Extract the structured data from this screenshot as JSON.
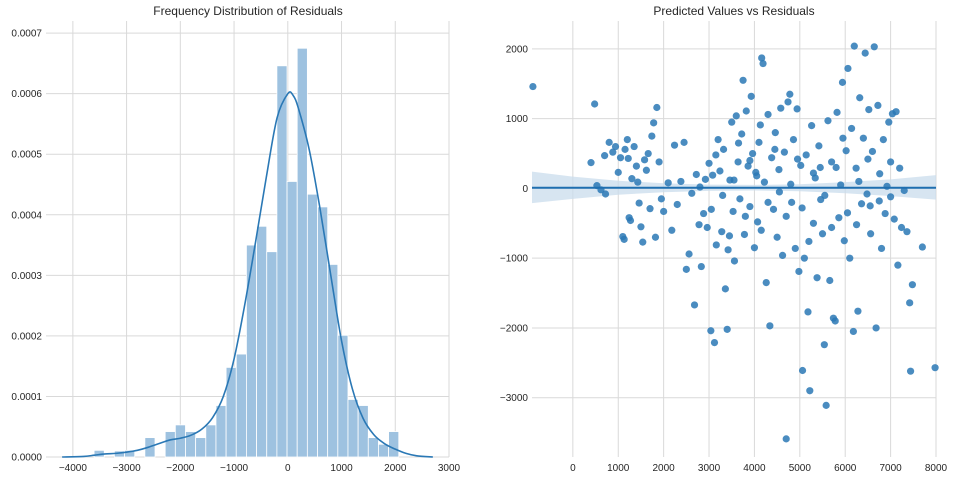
{
  "chart_data": [
    {
      "type": "histogram",
      "title": "Frequency Distribution of Residuals",
      "xlabel": "",
      "ylabel": "",
      "xlim": [
        -4500,
        3000
      ],
      "ylim": [
        0,
        0.00072
      ],
      "grid": true,
      "xticks": [
        -4000,
        -3000,
        -2000,
        -1000,
        0,
        1000,
        2000,
        3000
      ],
      "yticks": [
        0.0,
        0.0001,
        0.0002,
        0.0003,
        0.0004,
        0.0005,
        0.0006,
        0.0007
      ],
      "ytick_labels": [
        "0.0000",
        "0.0001",
        "0.0002",
        "0.0003",
        "0.0004",
        "0.0005",
        "0.0006",
        "0.0007"
      ],
      "bin_width": 189,
      "bins": [
        {
          "x0": -3605,
          "x1": -3416,
          "density": 1.1e-05
        },
        {
          "x0": -3416,
          "x1": -3227,
          "density": 0.0
        },
        {
          "x0": -3227,
          "x1": -3038,
          "density": 1e-05
        },
        {
          "x0": -3038,
          "x1": -2849,
          "density": 1.1e-05
        },
        {
          "x0": -2849,
          "x1": -2660,
          "density": 0.0
        },
        {
          "x0": -2660,
          "x1": -2471,
          "density": 3.2e-05
        },
        {
          "x0": -2471,
          "x1": -2282,
          "density": 0.0
        },
        {
          "x0": -2282,
          "x1": -2093,
          "density": 4.2e-05
        },
        {
          "x0": -2093,
          "x1": -1904,
          "density": 5.3e-05
        },
        {
          "x0": -1904,
          "x1": -1715,
          "density": 4.2e-05
        },
        {
          "x0": -1715,
          "x1": -1526,
          "density": 3.2e-05
        },
        {
          "x0": -1526,
          "x1": -1337,
          "density": 5.3e-05
        },
        {
          "x0": -1337,
          "x1": -1148,
          "density": 8.5e-05
        },
        {
          "x0": -1148,
          "x1": -959,
          "density": 0.000148
        },
        {
          "x0": -959,
          "x1": -770,
          "density": 0.00017
        },
        {
          "x0": -770,
          "x1": -581,
          "density": 0.00035
        },
        {
          "x0": -581,
          "x1": -392,
          "density": 0.000381
        },
        {
          "x0": -392,
          "x1": -203,
          "density": 0.000339
        },
        {
          "x0": -203,
          "x1": -14,
          "density": 0.000646
        },
        {
          "x0": -14,
          "x1": 175,
          "density": 0.000455
        },
        {
          "x0": 175,
          "x1": 364,
          "density": 0.000675
        },
        {
          "x0": 364,
          "x1": 553,
          "density": 0.000434
        },
        {
          "x0": 553,
          "x1": 742,
          "density": 0.000413
        },
        {
          "x0": 742,
          "x1": 931,
          "density": 0.000318
        },
        {
          "x0": 931,
          "x1": 1120,
          "density": 0.000201
        },
        {
          "x0": 1120,
          "x1": 1309,
          "density": 9.5e-05
        },
        {
          "x0": 1309,
          "x1": 1498,
          "density": 8.5e-05
        },
        {
          "x0": 1498,
          "x1": 1687,
          "density": 3.2e-05
        },
        {
          "x0": 1687,
          "x1": 1876,
          "density": 2.1e-05
        },
        {
          "x0": 1876,
          "x1": 2065,
          "density": 4.2e-05
        }
      ],
      "kde": {
        "x": [
          -4200,
          -3800,
          -3600,
          -3400,
          -3200,
          -3000,
          -2800,
          -2600,
          -2400,
          -2200,
          -2000,
          -1800,
          -1600,
          -1400,
          -1200,
          -1000,
          -800,
          -600,
          -400,
          -200,
          0,
          100,
          200,
          400,
          600,
          800,
          1000,
          1200,
          1400,
          1600,
          1800,
          2000,
          2200,
          2400,
          2700
        ],
        "y": [
          0.0,
          1e-06,
          3e-06,
          5e-06,
          6e-06,
          8e-06,
          1.1e-05,
          1.6e-05,
          2.2e-05,
          2.8e-05,
          3.1e-05,
          3.6e-05,
          4.6e-05,
          6.5e-05,
          0.0001,
          0.000162,
          0.000252,
          0.000355,
          0.000462,
          0.00056,
          0.0006,
          0.000597,
          0.000575,
          0.000507,
          0.00041,
          0.0003,
          0.000192,
          0.000113,
          6.4e-05,
          3.7e-05,
          2.2e-05,
          1.3e-05,
          6e-06,
          2e-06,
          0.0
        ]
      },
      "colors": {
        "bar": "#9ec2e0",
        "bar_edge": "#ffffff",
        "kde": "#2a78b5"
      }
    },
    {
      "type": "scatter",
      "title": "Predicted Values vs Residuals",
      "xlabel": "",
      "ylabel": "",
      "xlim": [
        -900,
        8000
      ],
      "ylim": [
        -3850,
        2400
      ],
      "grid": true,
      "xticks": [
        0,
        1000,
        2000,
        3000,
        4000,
        5000,
        6000,
        7000,
        8000
      ],
      "yticks": [
        -3000,
        -2000,
        -1000,
        0,
        1000,
        2000
      ],
      "regression": {
        "x": [
          -900,
          8000
        ],
        "y": [
          10,
          10
        ]
      },
      "confidence_band": {
        "x": [
          -900,
          0,
          1000,
          2000,
          3000,
          4000,
          5000,
          6000,
          7000,
          8000
        ],
        "lower": [
          -210,
          -150,
          -90,
          -55,
          -35,
          -30,
          -40,
          -70,
          -110,
          -160
        ],
        "upper": [
          240,
          170,
          110,
          75,
          55,
          50,
          60,
          90,
          130,
          190
        ]
      },
      "points": [
        {
          "x": -880,
          "y": 1460
        },
        {
          "x": 480,
          "y": 1210
        },
        {
          "x": 400,
          "y": 370
        },
        {
          "x": 530,
          "y": 40
        },
        {
          "x": 620,
          "y": -20
        },
        {
          "x": 700,
          "y": 470
        },
        {
          "x": 720,
          "y": -80
        },
        {
          "x": 800,
          "y": 660
        },
        {
          "x": 880,
          "y": 520
        },
        {
          "x": 940,
          "y": 600
        },
        {
          "x": 1000,
          "y": 230
        },
        {
          "x": 1050,
          "y": 440
        },
        {
          "x": 1100,
          "y": -690
        },
        {
          "x": 1130,
          "y": -730
        },
        {
          "x": 1150,
          "y": 560
        },
        {
          "x": 1200,
          "y": 700
        },
        {
          "x": 1220,
          "y": 430
        },
        {
          "x": 1240,
          "y": -420
        },
        {
          "x": 1270,
          "y": -460
        },
        {
          "x": 1300,
          "y": 140
        },
        {
          "x": 1350,
          "y": 600
        },
        {
          "x": 1400,
          "y": 320
        },
        {
          "x": 1430,
          "y": 90
        },
        {
          "x": 1460,
          "y": -210
        },
        {
          "x": 1500,
          "y": -550
        },
        {
          "x": 1540,
          "y": -770
        },
        {
          "x": 1580,
          "y": 410
        },
        {
          "x": 1620,
          "y": 260
        },
        {
          "x": 1660,
          "y": 500
        },
        {
          "x": 1700,
          "y": -290
        },
        {
          "x": 1740,
          "y": 750
        },
        {
          "x": 1780,
          "y": 940
        },
        {
          "x": 1820,
          "y": -700
        },
        {
          "x": 1850,
          "y": 1160
        },
        {
          "x": 1900,
          "y": 380
        },
        {
          "x": 1950,
          "y": -150
        },
        {
          "x": 2000,
          "y": -330
        },
        {
          "x": 2100,
          "y": 80
        },
        {
          "x": 2180,
          "y": -600
        },
        {
          "x": 2240,
          "y": 620
        },
        {
          "x": 2300,
          "y": -230
        },
        {
          "x": 2380,
          "y": 100
        },
        {
          "x": 2450,
          "y": 660
        },
        {
          "x": 2500,
          "y": -1160
        },
        {
          "x": 2560,
          "y": -940
        },
        {
          "x": 2620,
          "y": -70
        },
        {
          "x": 2680,
          "y": -1670
        },
        {
          "x": 2720,
          "y": 200
        },
        {
          "x": 2780,
          "y": -520
        },
        {
          "x": 2830,
          "y": -1120
        },
        {
          "x": 2880,
          "y": -360
        },
        {
          "x": 2920,
          "y": 130
        },
        {
          "x": 2960,
          "y": -560
        },
        {
          "x": 3000,
          "y": 360
        },
        {
          "x": 3040,
          "y": -2040
        },
        {
          "x": 3080,
          "y": 190
        },
        {
          "x": 3120,
          "y": -2210
        },
        {
          "x": 3160,
          "y": -810
        },
        {
          "x": 3200,
          "y": 700
        },
        {
          "x": 3240,
          "y": 250
        },
        {
          "x": 3280,
          "y": -620
        },
        {
          "x": 3320,
          "y": 560
        },
        {
          "x": 3360,
          "y": -1440
        },
        {
          "x": 3400,
          "y": -2020
        },
        {
          "x": 3420,
          "y": -880
        },
        {
          "x": 3460,
          "y": 120
        },
        {
          "x": 3500,
          "y": 950
        },
        {
          "x": 3530,
          "y": -330
        },
        {
          "x": 3560,
          "y": -1040
        },
        {
          "x": 3600,
          "y": 1040
        },
        {
          "x": 3640,
          "y": 380
        },
        {
          "x": 3680,
          "y": -150
        },
        {
          "x": 3720,
          "y": 780
        },
        {
          "x": 3750,
          "y": 1550
        },
        {
          "x": 3780,
          "y": -660
        },
        {
          "x": 3820,
          "y": 1110
        },
        {
          "x": 3860,
          "y": 320
        },
        {
          "x": 3900,
          "y": -260
        },
        {
          "x": 3930,
          "y": 1320
        },
        {
          "x": 3960,
          "y": 500
        },
        {
          "x": 4000,
          "y": -850
        },
        {
          "x": 4030,
          "y": 230
        },
        {
          "x": 4070,
          "y": -480
        },
        {
          "x": 4100,
          "y": 660
        },
        {
          "x": 4130,
          "y": 910
        },
        {
          "x": 4160,
          "y": 1870
        },
        {
          "x": 4190,
          "y": 1790
        },
        {
          "x": 4220,
          "y": 90
        },
        {
          "x": 4260,
          "y": -1350
        },
        {
          "x": 4300,
          "y": 1060
        },
        {
          "x": 4340,
          "y": -1970
        },
        {
          "x": 4380,
          "y": 440
        },
        {
          "x": 4420,
          "y": -300
        },
        {
          "x": 4460,
          "y": 800
        },
        {
          "x": 4500,
          "y": -700
        },
        {
          "x": 4540,
          "y": 270
        },
        {
          "x": 4580,
          "y": 1150
        },
        {
          "x": 4620,
          "y": -960
        },
        {
          "x": 4660,
          "y": 520
        },
        {
          "x": 4700,
          "y": -3590
        },
        {
          "x": 4740,
          "y": 1240
        },
        {
          "x": 4780,
          "y": 1350
        },
        {
          "x": 4820,
          "y": -200
        },
        {
          "x": 4860,
          "y": 700
        },
        {
          "x": 4900,
          "y": -860
        },
        {
          "x": 4940,
          "y": 1140
        },
        {
          "x": 4980,
          "y": -1190
        },
        {
          "x": 5020,
          "y": 330
        },
        {
          "x": 5060,
          "y": -2610
        },
        {
          "x": 5100,
          "y": -1000
        },
        {
          "x": 5140,
          "y": 480
        },
        {
          "x": 5180,
          "y": -1770
        },
        {
          "x": 5220,
          "y": -2900
        },
        {
          "x": 5260,
          "y": 900
        },
        {
          "x": 5300,
          "y": -500
        },
        {
          "x": 5340,
          "y": 150
        },
        {
          "x": 5380,
          "y": -1280
        },
        {
          "x": 5420,
          "y": 610
        },
        {
          "x": 5460,
          "y": -160
        },
        {
          "x": 5500,
          "y": -650
        },
        {
          "x": 5540,
          "y": -2240
        },
        {
          "x": 5580,
          "y": -3110
        },
        {
          "x": 5620,
          "y": 970
        },
        {
          "x": 5660,
          "y": -1320
        },
        {
          "x": 5700,
          "y": 380
        },
        {
          "x": 5740,
          "y": -1860
        },
        {
          "x": 5780,
          "y": -1900
        },
        {
          "x": 5820,
          "y": 1090
        },
        {
          "x": 5860,
          "y": -420
        },
        {
          "x": 5900,
          "y": 50
        },
        {
          "x": 5940,
          "y": 1520
        },
        {
          "x": 5980,
          "y": -750
        },
        {
          "x": 6020,
          "y": 540
        },
        {
          "x": 6060,
          "y": 1720
        },
        {
          "x": 6100,
          "y": -1000
        },
        {
          "x": 6140,
          "y": 860
        },
        {
          "x": 6180,
          "y": -2050
        },
        {
          "x": 6200,
          "y": 2040
        },
        {
          "x": 6240,
          "y": 290
        },
        {
          "x": 6280,
          "y": -1760
        },
        {
          "x": 6320,
          "y": 1300
        },
        {
          "x": 6360,
          "y": -220
        },
        {
          "x": 6400,
          "y": 720
        },
        {
          "x": 6440,
          "y": 1940
        },
        {
          "x": 6480,
          "y": -80
        },
        {
          "x": 6520,
          "y": 1130
        },
        {
          "x": 6560,
          "y": -650
        },
        {
          "x": 6600,
          "y": 530
        },
        {
          "x": 6640,
          "y": 2030
        },
        {
          "x": 6680,
          "y": -2000
        },
        {
          "x": 6720,
          "y": 1190
        },
        {
          "x": 6760,
          "y": 210
        },
        {
          "x": 6800,
          "y": -860
        },
        {
          "x": 6840,
          "y": 700
        },
        {
          "x": 6880,
          "y": -360
        },
        {
          "x": 6920,
          "y": 30
        },
        {
          "x": 6960,
          "y": 950
        },
        {
          "x": 7000,
          "y": -120
        },
        {
          "x": 7040,
          "y": 1070
        },
        {
          "x": 7080,
          "y": -440
        },
        {
          "x": 7120,
          "y": 1100
        },
        {
          "x": 7160,
          "y": -1100
        },
        {
          "x": 7200,
          "y": 290
        },
        {
          "x": 7240,
          "y": -560
        },
        {
          "x": 7300,
          "y": -30
        },
        {
          "x": 7360,
          "y": -620
        },
        {
          "x": 7420,
          "y": -1640
        },
        {
          "x": 7440,
          "y": -2620
        },
        {
          "x": 7480,
          "y": -1380
        },
        {
          "x": 7700,
          "y": -840
        },
        {
          "x": 7980,
          "y": -2570
        },
        {
          "x": 2800,
          "y": 20
        },
        {
          "x": 3050,
          "y": -300
        },
        {
          "x": 3300,
          "y": -100
        },
        {
          "x": 3550,
          "y": 120
        },
        {
          "x": 3800,
          "y": -400
        },
        {
          "x": 4050,
          "y": 180
        },
        {
          "x": 4300,
          "y": -200
        },
        {
          "x": 4550,
          "y": -50
        },
        {
          "x": 4800,
          "y": 60
        },
        {
          "x": 5050,
          "y": -280
        },
        {
          "x": 5300,
          "y": 220
        },
        {
          "x": 5550,
          "y": -100
        },
        {
          "x": 5800,
          "y": 300
        },
        {
          "x": 6050,
          "y": -350
        },
        {
          "x": 6300,
          "y": 100
        },
        {
          "x": 6550,
          "y": -250
        },
        {
          "x": 3150,
          "y": 480
        },
        {
          "x": 3450,
          "y": -680
        },
        {
          "x": 3650,
          "y": 650
        },
        {
          "x": 3900,
          "y": 400
        },
        {
          "x": 4150,
          "y": -600
        },
        {
          "x": 4450,
          "y": 560
        },
        {
          "x": 4700,
          "y": -400
        },
        {
          "x": 4950,
          "y": 420
        },
        {
          "x": 5200,
          "y": -760
        },
        {
          "x": 5450,
          "y": 300
        },
        {
          "x": 5700,
          "y": -560
        },
        {
          "x": 5950,
          "y": 720
        },
        {
          "x": 6250,
          "y": -520
        },
        {
          "x": 6500,
          "y": 420
        },
        {
          "x": 6750,
          "y": -180
        },
        {
          "x": 7000,
          "y": 380
        }
      ],
      "colors": {
        "point": "#2a78b5",
        "line": "#1f6fb0",
        "band": "#c9dcec"
      }
    }
  ]
}
